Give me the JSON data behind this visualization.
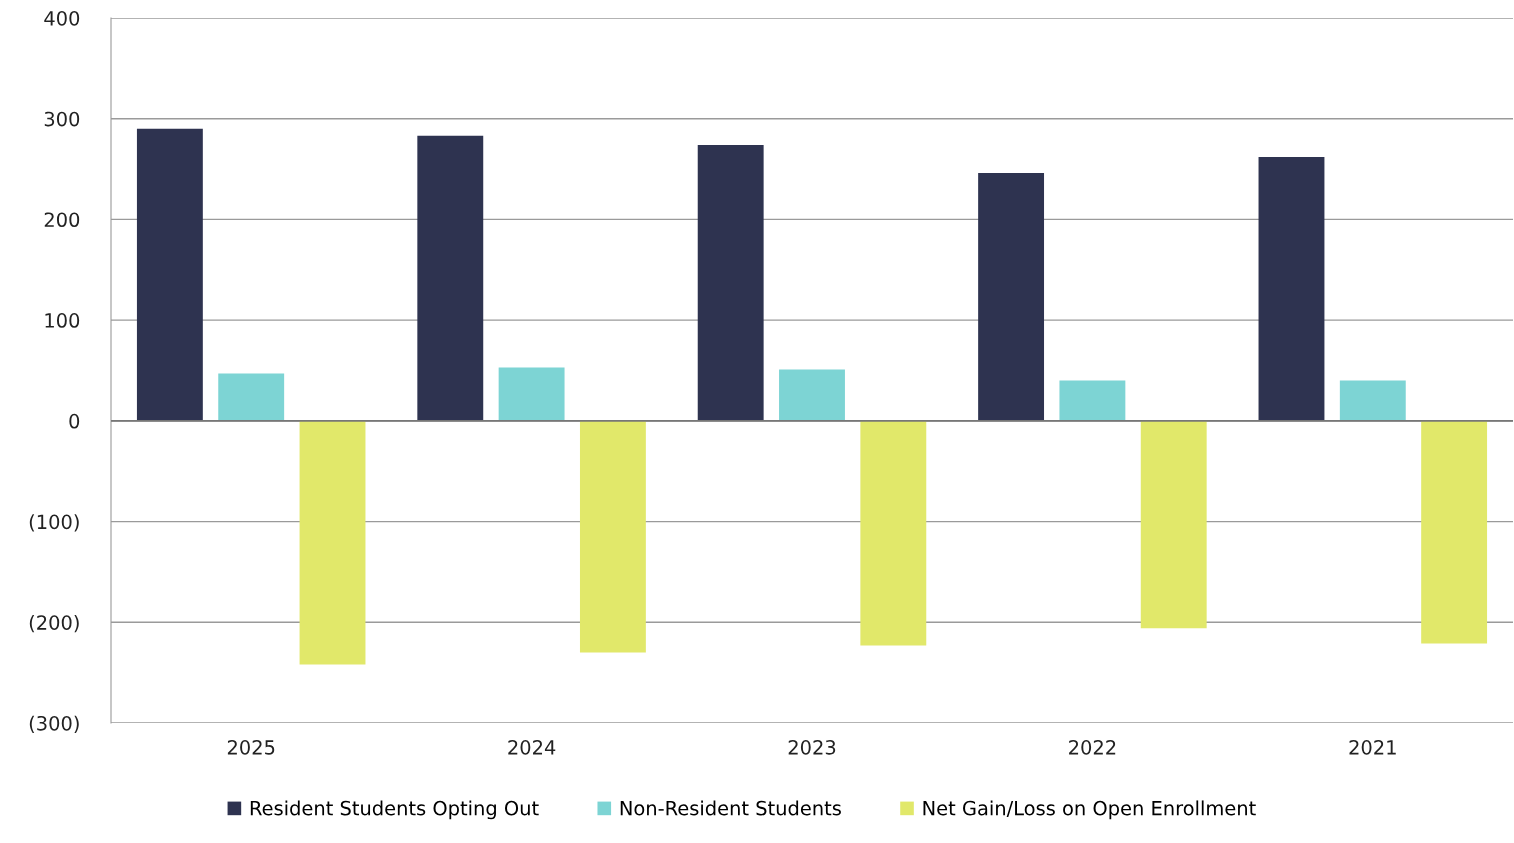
{
  "chart_data": {
    "type": "bar",
    "categories": [
      "2025",
      "2024",
      "2023",
      "2022",
      "2021"
    ],
    "series": [
      {
        "name": "Resident Students Opting Out",
        "color": "#2e3350",
        "values": [
          290,
          283,
          274,
          246,
          262
        ]
      },
      {
        "name": "Non-Resident Students",
        "color": "#7dd4d4",
        "values": [
          47,
          53,
          51,
          40,
          40
        ]
      },
      {
        "name": "Net Gain/Loss on Open Enrollment",
        "color": "#e1e86a",
        "values": [
          -242,
          -230,
          -223,
          -206,
          -221
        ]
      }
    ],
    "ylim": [
      -300,
      400
    ],
    "yticks": [
      {
        "value": -300,
        "label": "(300)"
      },
      {
        "value": -200,
        "label": "(200)"
      },
      {
        "value": -100,
        "label": "(100)"
      },
      0,
      100,
      200,
      300,
      400
    ],
    "grid": "y",
    "legend": "bottom"
  }
}
